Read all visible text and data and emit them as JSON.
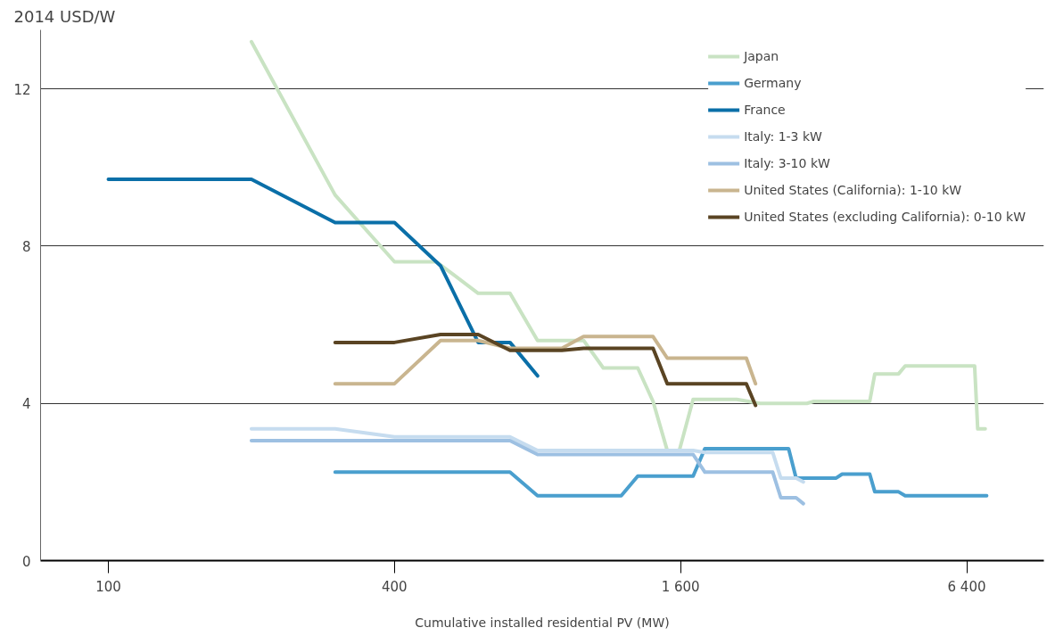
{
  "chart_data": {
    "type": "line",
    "ylabel": "2014 USD/W",
    "xlabel": "Cumulative installed residential PV (MW)",
    "log": "x",
    "xlim": [
      72,
      9300
    ],
    "xticks": [
      100,
      400,
      {
        "value": 1600,
        "label": "1 600"
      },
      {
        "value": 6400,
        "label": "6 400"
      }
    ],
    "ylim": [
      0,
      13.5
    ],
    "yticks": [
      0,
      4,
      8,
      12
    ],
    "grid": "y",
    "legend": "top right",
    "line_style": "solid",
    "series": [
      {
        "name": "Japan",
        "color": "#c9e3c3",
        "x": [
          200,
          300,
          400,
          490,
          600,
          700,
          800,
          1000,
          1100,
          1300,
          1400,
          1500,
          1590,
          1700,
          2100,
          2350,
          2950,
          3050,
          4000,
          4100,
          4600,
          4750,
          6650,
          6750,
          7000
        ],
        "values": [
          13.2,
          9.3,
          7.6,
          7.6,
          6.8,
          6.8,
          5.6,
          5.6,
          4.9,
          4.9,
          4.05,
          2.8,
          2.8,
          4.1,
          4.1,
          4.0,
          4.0,
          4.05,
          4.05,
          4.75,
          4.75,
          4.95,
          4.95,
          3.35,
          3.35
        ]
      },
      {
        "name": "Germany",
        "color": "#4a9fce",
        "x": [
          300,
          700,
          800,
          1200,
          1300,
          1700,
          1800,
          2700,
          2800,
          3400,
          3500,
          4000,
          4100,
          4600,
          4750,
          7050
        ],
        "values": [
          2.25,
          2.25,
          1.65,
          1.65,
          2.15,
          2.15,
          2.85,
          2.85,
          2.1,
          2.1,
          2.2,
          2.2,
          1.75,
          1.75,
          1.65,
          1.65
        ]
      },
      {
        "name": "France",
        "color": "#0a6fa8",
        "x": [
          100,
          200,
          300,
          400,
          500,
          600,
          700,
          800
        ],
        "values": [
          9.7,
          9.7,
          8.6,
          8.6,
          7.5,
          5.55,
          5.55,
          4.7
        ]
      },
      {
        "name": "Italy: 1-3 kW",
        "color": "#c6dcef",
        "x": [
          200,
          300,
          400,
          700,
          800,
          1700,
          1800,
          2500,
          2600,
          2800,
          2900
        ],
        "values": [
          3.35,
          3.35,
          3.15,
          3.15,
          2.8,
          2.8,
          2.75,
          2.75,
          2.1,
          2.1,
          2.0
        ]
      },
      {
        "name": "Italy: 3-10 kW",
        "color": "#9dc0e2",
        "x": [
          200,
          700,
          800,
          1700,
          1800,
          2500,
          2600,
          2800,
          2900
        ],
        "values": [
          3.05,
          3.05,
          2.7,
          2.7,
          2.25,
          2.25,
          1.6,
          1.6,
          1.45
        ]
      },
      {
        "name": "United States (California): 1-10 kW",
        "color": "#c9b58f",
        "x": [
          300,
          400,
          500,
          600,
          700,
          900,
          1000,
          1400,
          1500,
          2200,
          2300
        ],
        "values": [
          4.5,
          4.5,
          5.6,
          5.6,
          5.4,
          5.4,
          5.7,
          5.7,
          5.15,
          5.15,
          4.5
        ]
      },
      {
        "name": "United States (excluding California): 0-10 kW",
        "color": "#5a4423",
        "x": [
          300,
          400,
          500,
          600,
          700,
          900,
          1000,
          1400,
          1500,
          2200,
          2300
        ],
        "values": [
          5.55,
          5.55,
          5.75,
          5.75,
          5.35,
          5.35,
          5.4,
          5.4,
          4.5,
          4.5,
          3.95
        ]
      }
    ]
  }
}
